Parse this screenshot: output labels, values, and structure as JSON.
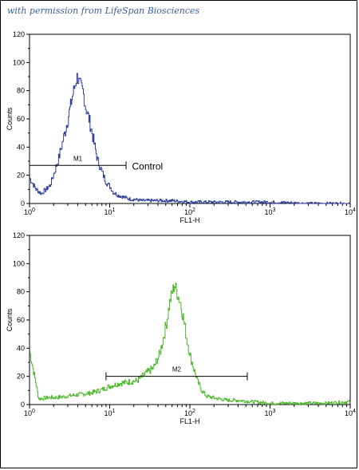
{
  "watermark": "with permission from LifeSpan Biosciences",
  "chart_data": [
    {
      "type": "line",
      "id": "top",
      "xlabel": "FL1-H",
      "ylabel": "Counts",
      "x_scale": "log",
      "xlim": [
        1,
        10000
      ],
      "ylim": [
        0,
        120
      ],
      "x_ticks": [
        1,
        10,
        100,
        1000,
        10000
      ],
      "x_tick_labels": [
        [
          "10",
          "0"
        ],
        [
          "10",
          "1"
        ],
        [
          "10",
          "2"
        ],
        [
          "10",
          "3"
        ],
        [
          "10",
          "4"
        ]
      ],
      "y_ticks": [
        0,
        20,
        40,
        60,
        80,
        100,
        120
      ],
      "grid": false,
      "color": "#2e3f9c",
      "series": [
        {
          "x": [
            1.0,
            1.2,
            1.4,
            1.6,
            1.8,
            2.0,
            2.3,
            2.6,
            3.0,
            3.3,
            3.6,
            3.9,
            4.2,
            4.6,
            5.0,
            5.5,
            6.0,
            6.5,
            7.0,
            8.0,
            9.0,
            10,
            11,
            12.5,
            14,
            16,
            18,
            20,
            25,
            30,
            40,
            60,
            100,
            200,
            400,
            1000,
            3000,
            10000
          ],
          "y": [
            18,
            10,
            7,
            10,
            13,
            21,
            32,
            45,
            60,
            72,
            82,
            90,
            85,
            80,
            68,
            60,
            50,
            40,
            31,
            22,
            15,
            12,
            8,
            6,
            5,
            4,
            3,
            3,
            2,
            2,
            2,
            2,
            1,
            1,
            1,
            1,
            0,
            0
          ]
        }
      ],
      "marker": {
        "label": "M1",
        "x_start": 1,
        "x_end": 16,
        "y": 27
      },
      "annotations": [
        {
          "text": "Control",
          "x": 19,
          "y": 27
        }
      ]
    },
    {
      "type": "line",
      "id": "bottom",
      "xlabel": "FL1-H",
      "ylabel": "Counts",
      "x_scale": "log",
      "xlim": [
        1,
        10000
      ],
      "ylim": [
        0,
        120
      ],
      "x_ticks": [
        1,
        10,
        100,
        1000,
        10000
      ],
      "x_tick_labels": [
        [
          "10",
          "0"
        ],
        [
          "10",
          "1"
        ],
        [
          "10",
          "2"
        ],
        [
          "10",
          "3"
        ],
        [
          "10",
          "4"
        ]
      ],
      "y_ticks": [
        0,
        20,
        40,
        60,
        80,
        100,
        120
      ],
      "grid": false,
      "color": "#4cb82a",
      "series": [
        {
          "x": [
            1.0,
            1.3,
            1.7,
            2.2,
            3.0,
            4.0,
            5.5,
            7.5,
            10,
            13,
            17,
            22,
            28,
            35,
            42,
            50,
            57,
            64,
            70,
            76,
            82,
            90,
            100,
            112,
            125,
            140,
            160,
            190,
            230,
            300,
            400,
            600,
            1000,
            2000,
            5000,
            10000
          ],
          "y": [
            38,
            4,
            5,
            5,
            6,
            7,
            8,
            10,
            13,
            15,
            16,
            17,
            22,
            26,
            36,
            56,
            75,
            85,
            78,
            72,
            62,
            48,
            35,
            25,
            16,
            10,
            6,
            5,
            4,
            3,
            3,
            2,
            1,
            1,
            1,
            2
          ]
        }
      ],
      "marker": {
        "label": "M2",
        "x_start": 9,
        "x_end": 520,
        "y": 20
      },
      "annotations": []
    }
  ]
}
